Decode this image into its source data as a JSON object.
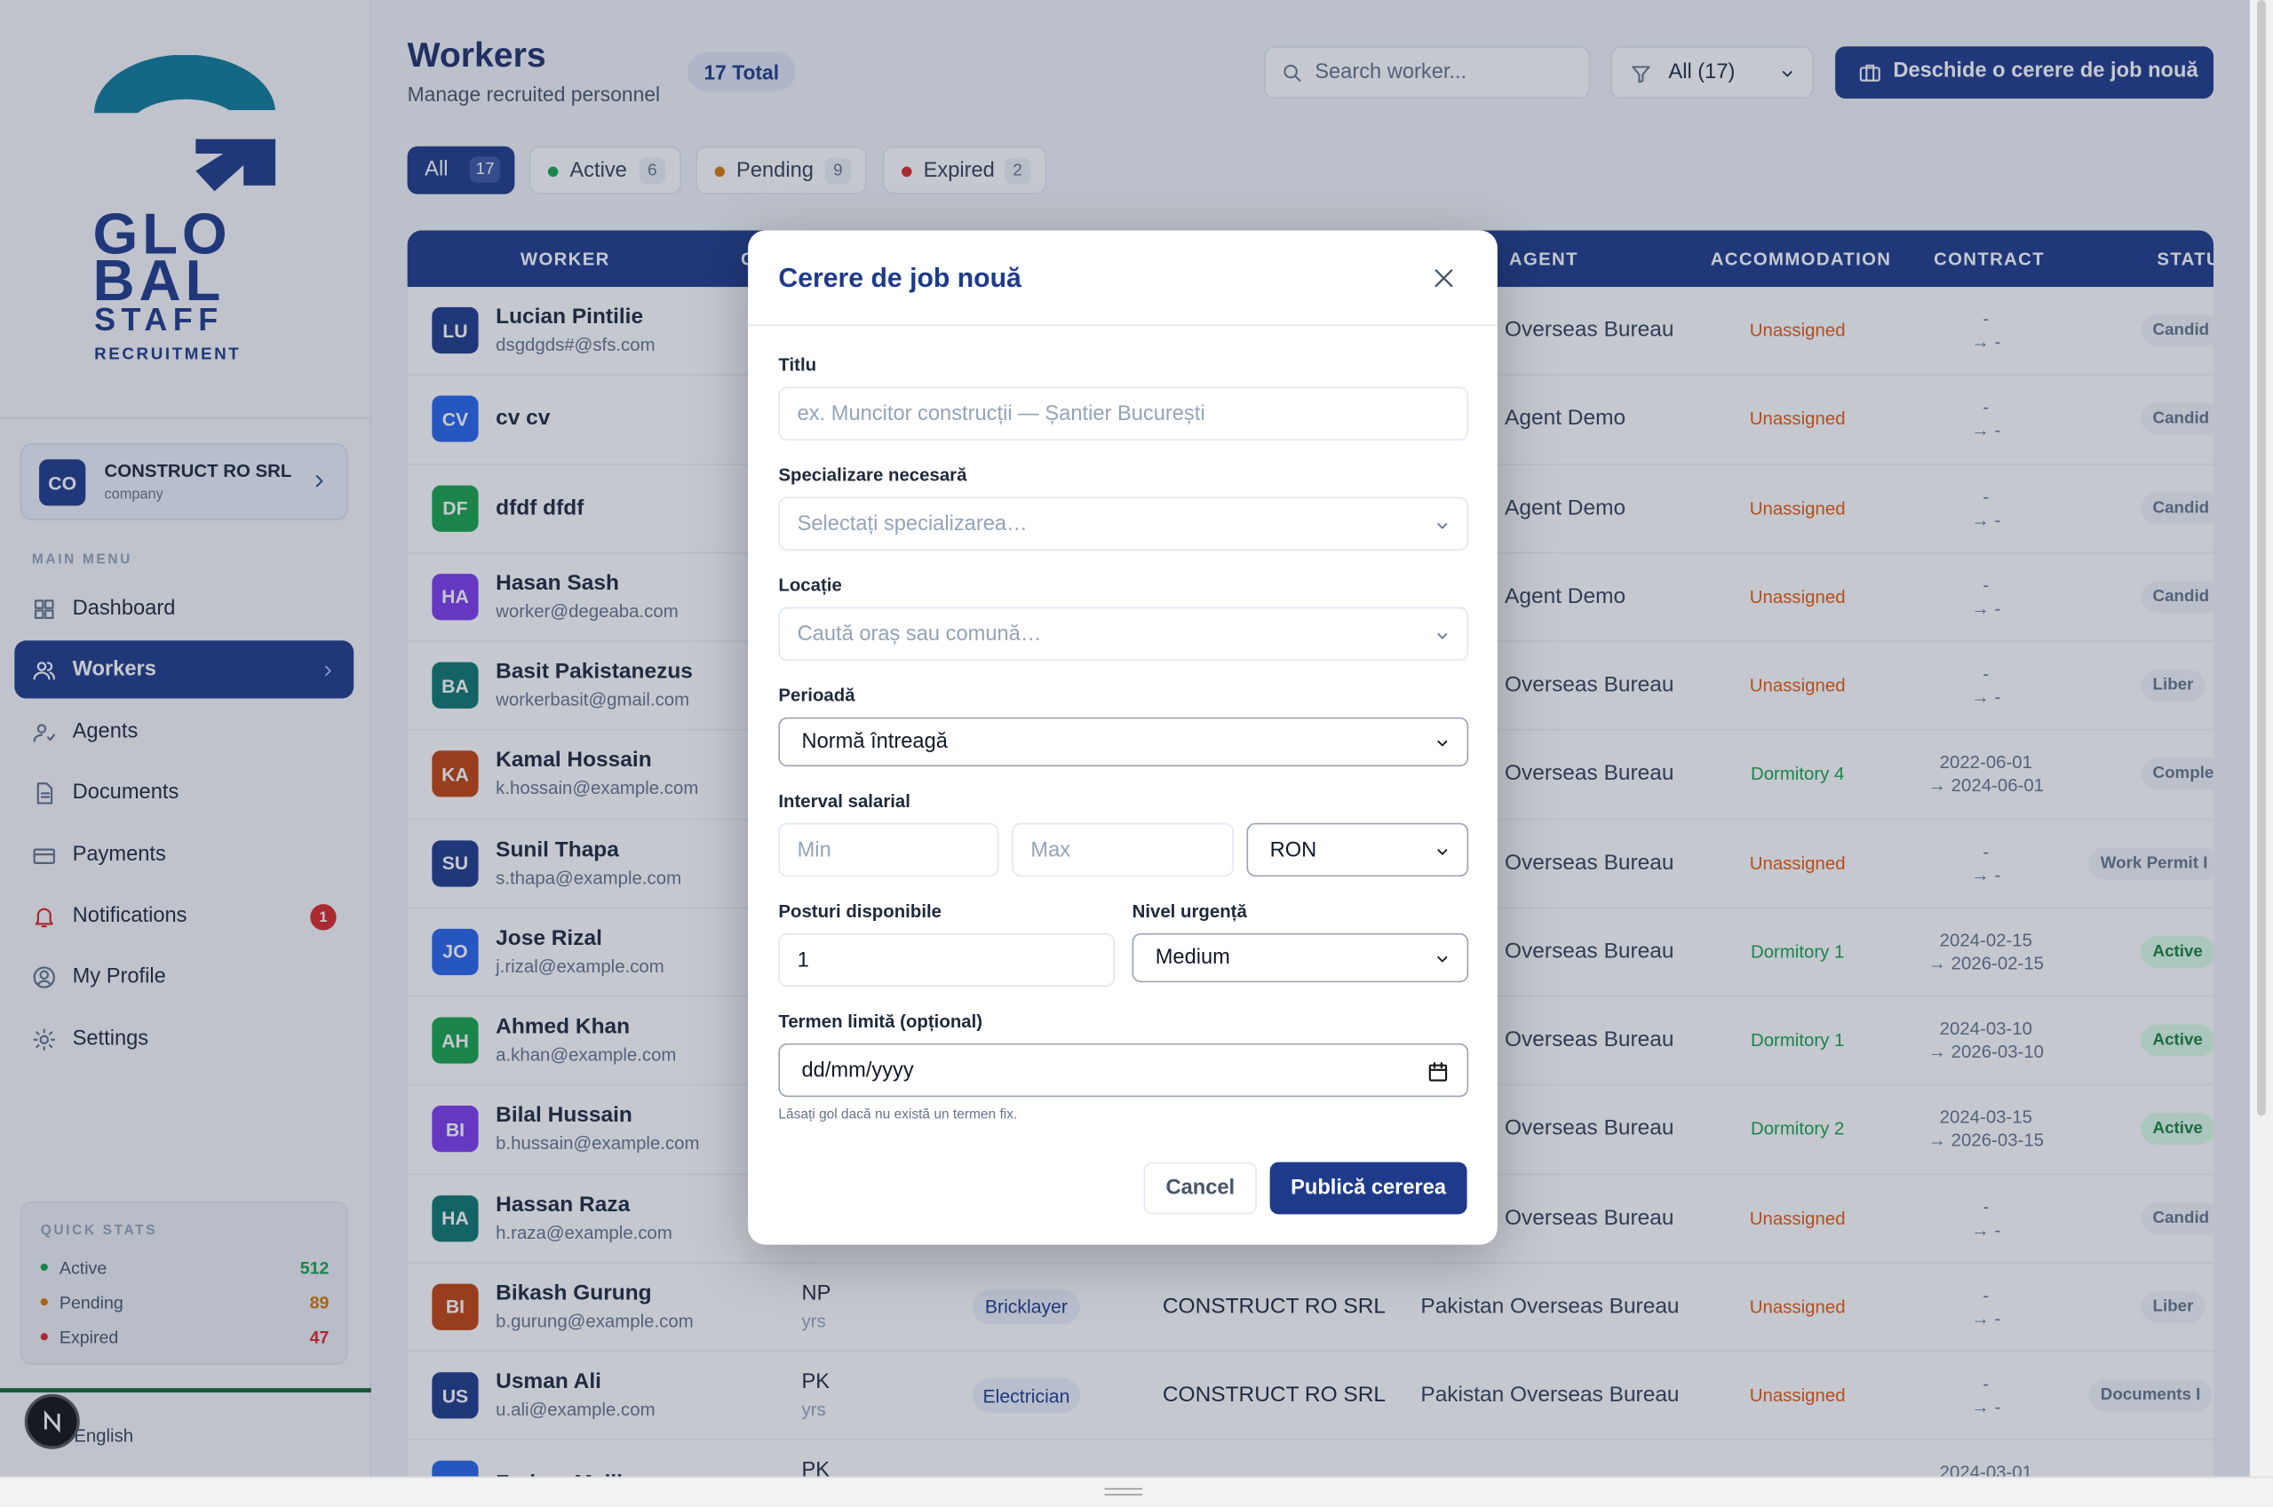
{
  "sidebar": {
    "logo": [
      "GLO",
      "BAL",
      "STAFF",
      "RECRUITMENT"
    ],
    "company": {
      "initials": "CO",
      "name": "CONSTRUCT RO SRL",
      "role": "company"
    },
    "menu_title": "MAIN MENU",
    "menu": [
      {
        "label": "Dashboard"
      },
      {
        "label": "Workers",
        "active": true
      },
      {
        "label": "Agents"
      },
      {
        "label": "Documents"
      },
      {
        "label": "Payments"
      },
      {
        "label": "Notifications",
        "badge": "1"
      },
      {
        "label": "My Profile"
      },
      {
        "label": "Settings"
      }
    ],
    "quick_stats": {
      "title": "QUICK STATS",
      "items": [
        {
          "label": "Active",
          "value": "512",
          "color": "#16a34a"
        },
        {
          "label": "Pending",
          "value": "89",
          "color": "#d97706"
        },
        {
          "label": "Expired",
          "value": "47",
          "color": "#dc2626"
        }
      ]
    },
    "language": "English"
  },
  "header": {
    "title": "Workers",
    "subtitle": "Manage recruited personnel",
    "total": "17 Total",
    "search_placeholder": "Search worker...",
    "filter": "All (17)",
    "new_button": "Deschide o cerere de job nouă"
  },
  "tabs": [
    {
      "label": "All",
      "count": "17"
    },
    {
      "label": "Active",
      "count": "6",
      "dot": "#16a34a"
    },
    {
      "label": "Pending",
      "count": "9",
      "dot": "#d97706"
    },
    {
      "label": "Expired",
      "count": "2",
      "dot": "#dc2626"
    }
  ],
  "table": {
    "columns": [
      "WORKER",
      "C",
      "AGENT",
      "ACCOMMODATION",
      "CONTRACT",
      "STATU"
    ],
    "rows": [
      {
        "initials": "LU",
        "color": "#1e3a8a",
        "name": "Lucian Pintilie",
        "email": "dsgdgds#@sfs.com",
        "agent": "Overseas Bureau",
        "accommodation": "Unassigned",
        "contract": [
          "-",
          "→ -"
        ],
        "status": "Candid"
      },
      {
        "initials": "CV",
        "color": "#2563eb",
        "name": "cv cv",
        "agent": "Agent Demo",
        "accommodation": "Unassigned",
        "contract": [
          "-",
          "→ -"
        ],
        "status": "Candid"
      },
      {
        "initials": "DF",
        "color": "#16a34a",
        "name": "dfdf dfdf",
        "agent": "Agent Demo",
        "accommodation": "Unassigned",
        "contract": [
          "-",
          "→ -"
        ],
        "status": "Candid"
      },
      {
        "initials": "HA",
        "color": "#7c3aed",
        "name": "Hasan Sash",
        "email": "worker@degeaba.com",
        "agent": "Agent Demo",
        "accommodation": "Unassigned",
        "contract": [
          "-",
          "→ -"
        ],
        "status": "Candid"
      },
      {
        "initials": "BA",
        "color": "#0f766e",
        "name": "Basit Pakistanezus",
        "email": "workerbasit@gmail.com",
        "agent": "Overseas Bureau",
        "accommodation": "Unassigned",
        "contract": [
          "-",
          "→ -"
        ],
        "status": "Liber"
      },
      {
        "initials": "KA",
        "color": "#c2410c",
        "name": "Kamal Hossain",
        "email": "k.hossain@example.com",
        "agent": "Overseas Bureau",
        "accommodation": "Dormitory 4",
        "contract": [
          "2022-06-01",
          "→ 2024-06-01"
        ],
        "status": "Comple"
      },
      {
        "initials": "SU",
        "color": "#1e3a8a",
        "name": "Sunil Thapa",
        "email": "s.thapa@example.com",
        "agent": "Overseas Bureau",
        "accommodation": "Unassigned",
        "contract": [
          "-",
          "→ -"
        ],
        "status": "Work Permit I"
      },
      {
        "initials": "JO",
        "color": "#2563eb",
        "name": "Jose Rizal",
        "email": "j.rizal@example.com",
        "agent": "Overseas Bureau",
        "accommodation": "Dormitory 1",
        "contract": [
          "2024-02-15",
          "→ 2026-02-15"
        ],
        "status": "Active"
      },
      {
        "initials": "AH",
        "color": "#16a34a",
        "name": "Ahmed Khan",
        "email": "a.khan@example.com",
        "agent": "Overseas Bureau",
        "accommodation": "Dormitory 1",
        "contract": [
          "2024-03-10",
          "→ 2026-03-10"
        ],
        "status": "Active"
      },
      {
        "initials": "BI",
        "color": "#7c3aed",
        "name": "Bilal Hussain",
        "email": "b.hussain@example.com",
        "agent": "Overseas Bureau",
        "accommodation": "Dormitory 2",
        "contract": [
          "2024-03-15",
          "→ 2026-03-15"
        ],
        "status": "Active"
      },
      {
        "initials": "HA",
        "color": "#0f766e",
        "name": "Hassan Raza",
        "email": "h.raza@example.com",
        "agent": "Overseas Bureau",
        "accommodation": "Unassigned",
        "contract": [
          "-",
          "→ -"
        ],
        "status": "Candid"
      },
      {
        "initials": "BI",
        "color": "#c2410c",
        "name": "Bikash Gurung",
        "email": "b.gurung@example.com",
        "origin": "NP",
        "origin_sub": "yrs",
        "specialization": "Bricklayer",
        "company": "CONSTRUCT RO SRL",
        "agent": "Pakistan Overseas Bureau",
        "accommodation": "Unassigned",
        "contract": [
          "-",
          "→ -"
        ],
        "status": "Liber"
      },
      {
        "initials": "US",
        "color": "#1e3a8a",
        "name": "Usman Ali",
        "email": "u.ali@example.com",
        "origin": "PK",
        "origin_sub": "yrs",
        "specialization": "Electrician",
        "company": "CONSTRUCT RO SRL",
        "agent": "Pakistan Overseas Bureau",
        "accommodation": "Unassigned",
        "contract": [
          "-",
          "→ -"
        ],
        "status": "Documents I"
      },
      {
        "color": "#2563eb",
        "name": "Farhan Malik",
        "origin": "PK",
        "contract": [
          "2024-03-01"
        ]
      }
    ]
  },
  "modal": {
    "title": "Cerere de job nouă",
    "title_label": "Titlu",
    "title_placeholder": "ex. Muncitor construcții — Șantier București",
    "spec_label": "Specializare necesară",
    "spec_placeholder": "Selectați specializarea…",
    "location_label": "Locație",
    "location_placeholder": "Caută oraș sau comună…",
    "period_label": "Perioadă",
    "period_value": "Normă întreagă",
    "salary_label": "Interval salarial",
    "salary_min": "Min",
    "salary_max": "Max",
    "currency": "RON",
    "positions_label": "Posturi disponibile",
    "positions_value": "1",
    "urgency_label": "Nivel urgență",
    "urgency_value": "Medium",
    "deadline_label": "Termen limită (opțional)",
    "deadline_placeholder": "dd/mm/yyyy",
    "deadline_hint": "Lăsați gol dacă nu există un termen fix.",
    "cancel": "Cancel",
    "submit": "Publică cererea"
  }
}
